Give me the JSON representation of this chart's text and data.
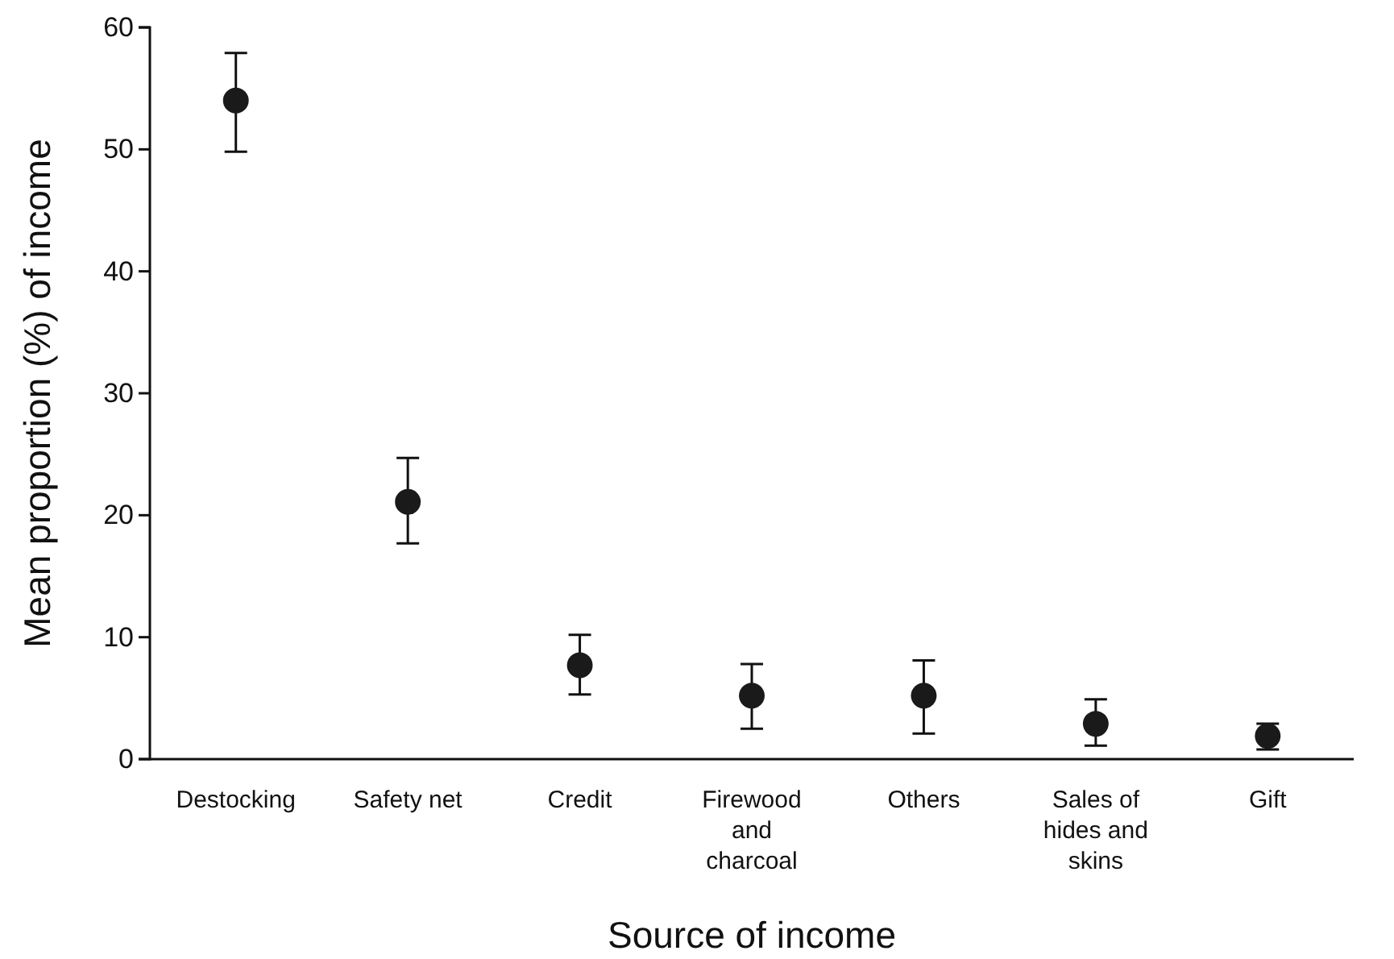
{
  "chart_data": {
    "type": "scatter",
    "xlabel": "Source of income",
    "ylabel": "Mean proportion (%) of income",
    "categories": [
      "Destocking",
      "Safety net",
      "Credit",
      "Firewood and charcoal",
      "Others",
      "Sales of hides and skins",
      "Gift"
    ],
    "values": [
      54,
      21.1,
      7.7,
      5.2,
      5.2,
      2.9,
      1.9
    ],
    "errors": [
      [
        49.8,
        57.9
      ],
      [
        17.7,
        24.7
      ],
      [
        5.3,
        10.2
      ],
      [
        2.5,
        7.8
      ],
      [
        2.1,
        8.1
      ],
      [
        1.1,
        4.9
      ],
      [
        0.8,
        2.9
      ]
    ],
    "color": "#1a1a1a",
    "marker": "circle",
    "grid": false,
    "ylim": [
      0,
      60
    ],
    "yticks": [
      0,
      10,
      20,
      30,
      40,
      50,
      60
    ]
  }
}
